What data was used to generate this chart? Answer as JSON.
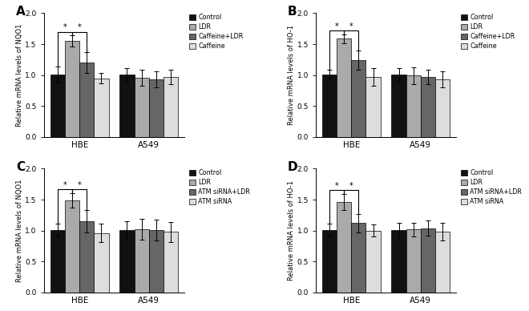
{
  "panels": [
    {
      "label": "A",
      "ylabel": "Relative mRNA levels of NQO1",
      "legend_labels": [
        "Control",
        "LDR",
        "Caffeine+LDR",
        "Caffeine"
      ],
      "groups": [
        "HBE",
        "A549"
      ],
      "values": [
        [
          1.01,
          1.55,
          1.2,
          0.95
        ],
        [
          1.01,
          0.96,
          0.93,
          0.97
        ]
      ],
      "errors": [
        [
          0.13,
          0.09,
          0.17,
          0.08
        ],
        [
          0.1,
          0.13,
          0.13,
          0.12
        ]
      ]
    },
    {
      "label": "B",
      "ylabel": "Relative mRNA levels of HO-1",
      "legend_labels": [
        "Control",
        "LDR",
        "Caffeine+LDR",
        "Caffeine"
      ],
      "groups": [
        "HBE",
        "A549"
      ],
      "values": [
        [
          1.01,
          1.59,
          1.24,
          0.97
        ],
        [
          1.01,
          0.99,
          0.97,
          0.93
        ]
      ],
      "errors": [
        [
          0.08,
          0.07,
          0.16,
          0.14
        ],
        [
          0.1,
          0.14,
          0.12,
          0.13
        ]
      ]
    },
    {
      "label": "C",
      "ylabel": "Relative mRNA levels of NQO1",
      "legend_labels": [
        "Control",
        "LDR",
        "ATM siRNA+LDR",
        "ATM siRNA"
      ],
      "groups": [
        "HBE",
        "A549"
      ],
      "values": [
        [
          1.01,
          1.49,
          1.15,
          0.96
        ],
        [
          1.01,
          1.02,
          1.01,
          0.98
        ]
      ],
      "errors": [
        [
          0.1,
          0.12,
          0.18,
          0.15
        ],
        [
          0.14,
          0.17,
          0.17,
          0.16
        ]
      ]
    },
    {
      "label": "D",
      "ylabel": "Relative mRNA levels of HO-1",
      "legend_labels": [
        "Control",
        "LDR",
        "ATM siRNA+LDR",
        "ATM siRNA"
      ],
      "groups": [
        "HBE",
        "A549"
      ],
      "values": [
        [
          1.01,
          1.46,
          1.12,
          1.0
        ],
        [
          1.01,
          1.02,
          1.04,
          0.98
        ]
      ],
      "errors": [
        [
          0.1,
          0.13,
          0.15,
          0.1
        ],
        [
          0.12,
          0.11,
          0.12,
          0.14
        ]
      ]
    }
  ],
  "bar_colors": [
    "#111111",
    "#aaaaaa",
    "#666666",
    "#dddddd"
  ],
  "ylim": [
    0,
    2.0
  ],
  "yticks": [
    0.0,
    0.5,
    1.0,
    1.5,
    2.0
  ],
  "background_color": "#ffffff",
  "edgecolor": "#000000"
}
